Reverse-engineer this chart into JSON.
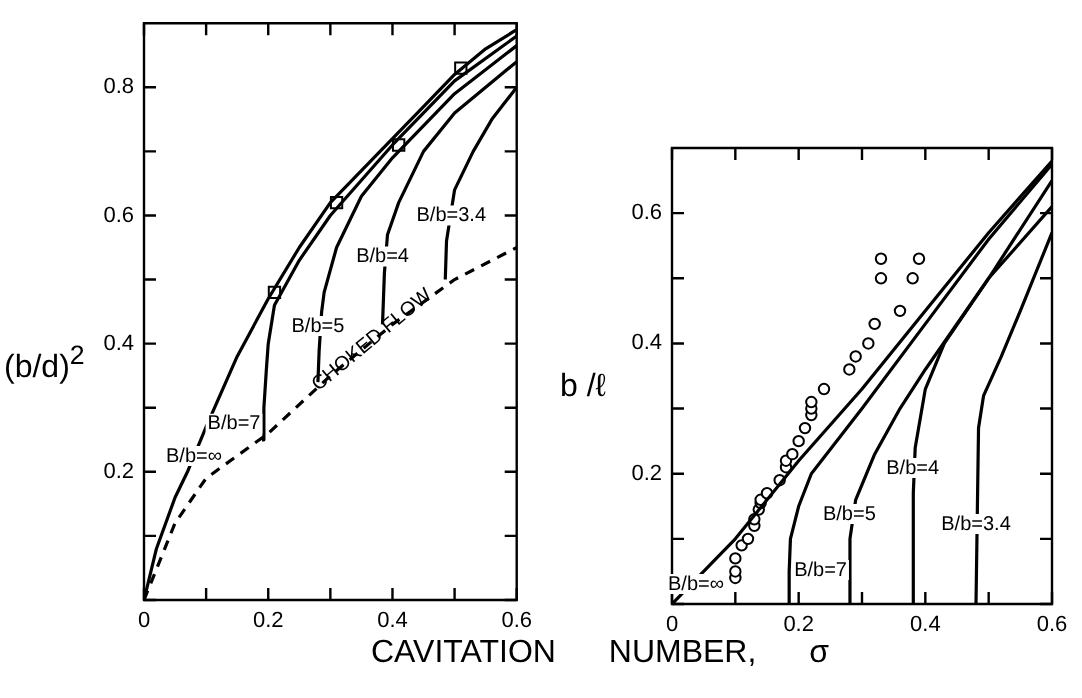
{
  "chart_data": [
    {
      "type": "line",
      "xlabel": "CAVITATION NUMBER, σ",
      "ylabel": "(b/d)$^{2}$",
      "xlim": [
        0,
        0.6
      ],
      "ylim": [
        0,
        0.9
      ],
      "xticks": [
        0,
        {
          "value": 0.1,
          "label": null
        },
        0.2,
        {
          "value": 0.3,
          "label": null
        },
        0.4,
        {
          "value": 0.5,
          "label": null
        },
        0.6
      ],
      "yticks": [
        {
          "value": 0,
          "label": null
        },
        {
          "value": 0.1,
          "label": null
        },
        0.2,
        {
          "value": 0.3,
          "label": null
        },
        0.4,
        {
          "value": 0.5,
          "label": null
        },
        0.6,
        {
          "value": 0.7,
          "label": null
        },
        0.8
      ],
      "grid": false,
      "legend": false,
      "series": [
        {
          "name": "B/b=∞",
          "color": "#000000",
          "x": [
            0,
            0.02,
            0.05,
            0.07,
            0.1,
            0.15,
            0.2,
            0.25,
            0.3,
            0.35,
            0.4,
            0.45,
            0.5,
            0.55,
            0.6
          ],
          "values": [
            0,
            0.08,
            0.16,
            0.2,
            0.27,
            0.38,
            0.47,
            0.55,
            0.62,
            0.67,
            0.72,
            0.77,
            0.82,
            0.86,
            0.89
          ]
        },
        {
          "name": "B/b=7",
          "color": "#000000",
          "x": [
            0.19,
            0.193,
            0.197,
            0.2,
            0.21,
            0.25,
            0.3,
            0.4,
            0.5,
            0.6
          ],
          "values": [
            0.25,
            0.3,
            0.36,
            0.4,
            0.46,
            0.53,
            0.6,
            0.71,
            0.81,
            0.88
          ]
        },
        {
          "name": "B/b=5",
          "color": "#000000",
          "x": [
            0.28,
            0.282,
            0.286,
            0.29,
            0.31,
            0.35,
            0.4,
            0.5,
            0.6
          ],
          "values": [
            0.34,
            0.39,
            0.45,
            0.48,
            0.55,
            0.63,
            0.69,
            0.79,
            0.865
          ]
        },
        {
          "name": "B/b=4",
          "color": "#000000",
          "x": [
            0.384,
            0.387,
            0.392,
            0.41,
            0.45,
            0.5,
            0.6
          ],
          "values": [
            0.43,
            0.51,
            0.57,
            0.62,
            0.7,
            0.76,
            0.84
          ]
        },
        {
          "name": "B/b=3.4",
          "color": "#000000",
          "x": [
            0.485,
            0.487,
            0.5,
            0.53,
            0.56,
            0.6
          ],
          "values": [
            0.5,
            0.56,
            0.64,
            0.7,
            0.75,
            0.8
          ]
        },
        {
          "name": "CHOKED FLOW",
          "color": "#000000",
          "line_style": "dashed",
          "x": [
            0,
            0.05,
            0.1,
            0.2,
            0.3,
            0.4,
            0.5,
            0.6
          ],
          "values": [
            0,
            0.12,
            0.19,
            0.26,
            0.35,
            0.43,
            0.5,
            0.55
          ]
        },
        {
          "type": "scatter",
          "marker": "square",
          "color": "#000000",
          "x": [
            0.21,
            0.31,
            0.41,
            0.51
          ],
          "values": [
            0.48,
            0.62,
            0.71,
            0.83
          ]
        }
      ]
    },
    {
      "type": "line",
      "ylabel": "b /ℓ",
      "xlim": [
        0,
        0.6
      ],
      "ylim": [
        0,
        0.7
      ],
      "xticks": [
        0,
        {
          "value": 0.1,
          "label": null
        },
        0.2,
        {
          "value": 0.3,
          "label": null
        },
        0.4,
        {
          "value": 0.5,
          "label": null
        },
        0.6
      ],
      "yticks": [
        {
          "value": 0,
          "label": null
        },
        {
          "value": 0.1,
          "label": null
        },
        0.2,
        {
          "value": 0.3,
          "label": null
        },
        0.4,
        {
          "value": 0.5,
          "label": null
        },
        0.6
      ],
      "grid": false,
      "legend": false,
      "series": [
        {
          "name": "B/b=∞",
          "color": "#000000",
          "x": [
            0,
            0.06,
            0.1,
            0.2,
            0.3,
            0.4,
            0.5,
            0.6
          ],
          "values": [
            0,
            0.06,
            0.1,
            0.22,
            0.33,
            0.45,
            0.57,
            0.68
          ]
        },
        {
          "name": "B/b=7",
          "color": "#000000",
          "x": [
            0.184,
            0.185,
            0.187,
            0.2,
            0.22,
            0.3,
            0.4,
            0.5,
            0.6
          ],
          "values": [
            0,
            0.05,
            0.1,
            0.15,
            0.2,
            0.3,
            0.43,
            0.56,
            0.675
          ]
        },
        {
          "name": "B/b=5",
          "color": "#000000",
          "x": [
            0.28,
            0.281,
            0.29,
            0.32,
            0.36,
            0.4,
            0.5,
            0.6
          ],
          "values": [
            0,
            0.1,
            0.16,
            0.23,
            0.3,
            0.36,
            0.5,
            0.65
          ]
        },
        {
          "name": "B/b=4",
          "color": "#000000",
          "x": [
            0.38,
            0.381,
            0.384,
            0.4,
            0.43,
            0.5,
            0.6
          ],
          "values": [
            0,
            0.17,
            0.24,
            0.33,
            0.4,
            0.5,
            0.61
          ]
        },
        {
          "name": "B/b=3.4",
          "color": "#000000",
          "x": [
            0.48,
            0.484,
            0.492,
            0.52,
            0.55,
            0.6
          ],
          "values": [
            0,
            0.27,
            0.32,
            0.38,
            0.45,
            0.57
          ]
        },
        {
          "type": "scatter",
          "marker": "circle",
          "color": "#000000",
          "x": [
            0.1,
            0.1,
            0.1,
            0.11,
            0.12,
            0.13,
            0.13,
            0.137,
            0.14,
            0.14,
            0.15,
            0.17,
            0.18,
            0.18,
            0.19,
            0.2,
            0.21,
            0.22,
            0.22,
            0.22,
            0.24,
            0.28,
            0.29,
            0.31,
            0.32,
            0.33,
            0.33,
            0.36,
            0.38,
            0.39
          ],
          "values": [
            0.04,
            0.05,
            0.07,
            0.09,
            0.1,
            0.12,
            0.13,
            0.145,
            0.155,
            0.16,
            0.17,
            0.19,
            0.21,
            0.22,
            0.23,
            0.25,
            0.27,
            0.29,
            0.3,
            0.31,
            0.33,
            0.36,
            0.38,
            0.4,
            0.43,
            0.5,
            0.53,
            0.45,
            0.5,
            0.53
          ]
        }
      ]
    }
  ]
}
